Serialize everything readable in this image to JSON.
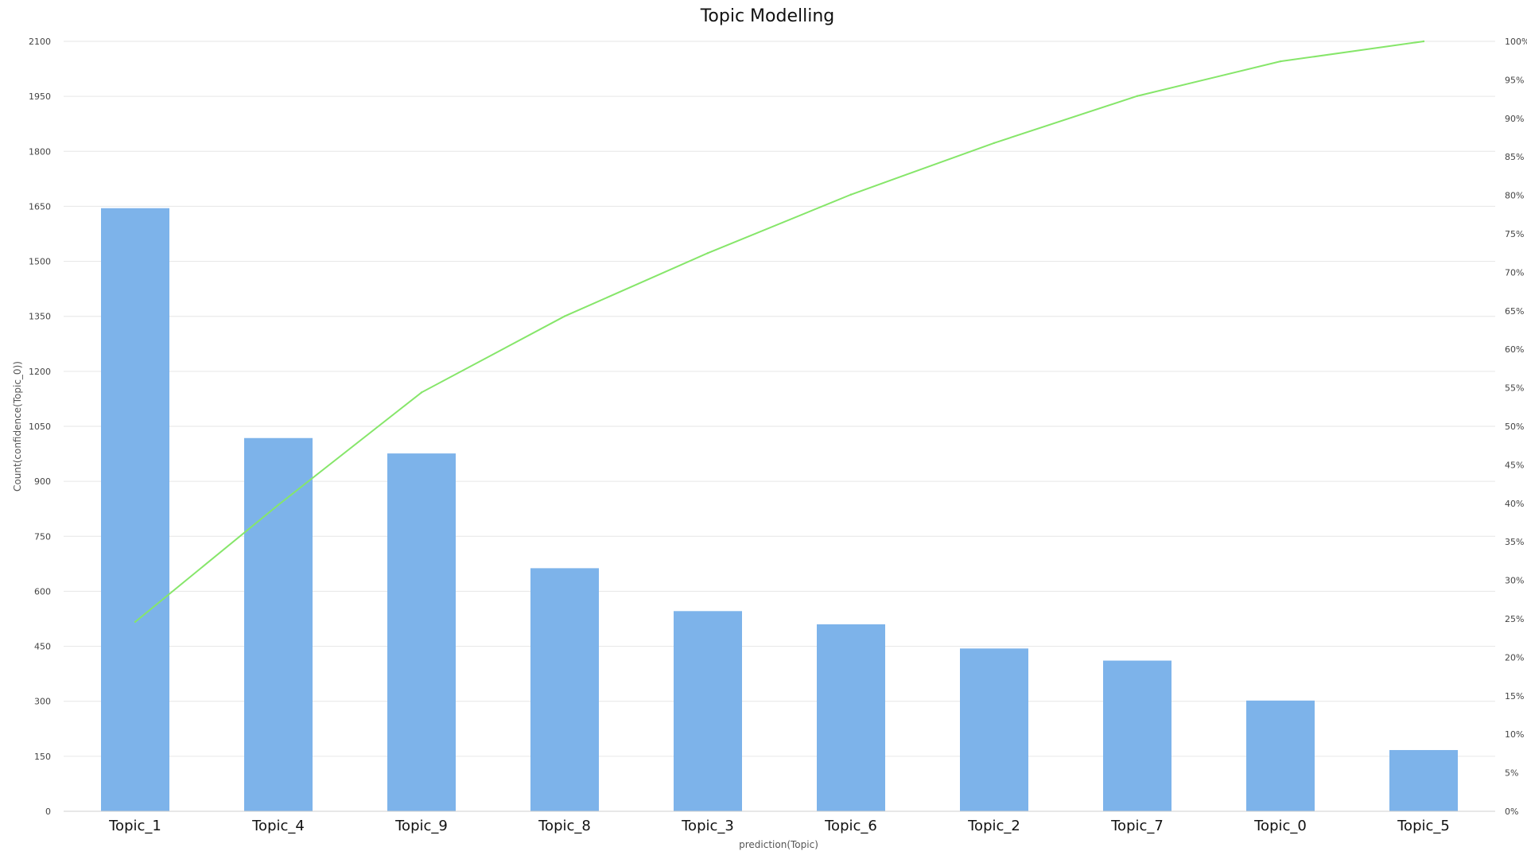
{
  "chart_data": {
    "type": "bar",
    "title": "Topic Modelling",
    "xlabel": "prediction(Topic)",
    "ylabel": "Count(confidence(Topic_0))",
    "categories": [
      "Topic_1",
      "Topic_4",
      "Topic_9",
      "Topic_8",
      "Topic_3",
      "Topic_6",
      "Topic_2",
      "Topic_7",
      "Topic_0",
      "Topic_5"
    ],
    "series": [
      {
        "type": "bar",
        "axis": "left",
        "color": "#7db3ea",
        "values": [
          1645,
          1018,
          976,
          663,
          546,
          510,
          444,
          411,
          302,
          167
        ]
      },
      {
        "type": "line",
        "axis": "right",
        "color": "#86e66a",
        "values": [
          24.6,
          39.8,
          54.4,
          64.3,
          72.5,
          80.1,
          86.8,
          92.9,
          97.4,
          100
        ]
      }
    ],
    "ylim": [
      0,
      2100
    ],
    "yticks": [
      "0",
      "150",
      "300",
      "450",
      "600",
      "750",
      "900",
      "1050",
      "1200",
      "1350",
      "1500",
      "1650",
      "1800",
      "1950",
      "2100"
    ],
    "y2lim": [
      0,
      100
    ],
    "y2ticks": [
      "0%",
      "5%",
      "10%",
      "15%",
      "20%",
      "25%",
      "30%",
      "35%",
      "40%",
      "45%",
      "50%",
      "55%",
      "60%",
      "65%",
      "70%",
      "75%",
      "80%",
      "85%",
      "90%",
      "95%",
      "100%"
    ],
    "grid": true,
    "legend": "none"
  }
}
